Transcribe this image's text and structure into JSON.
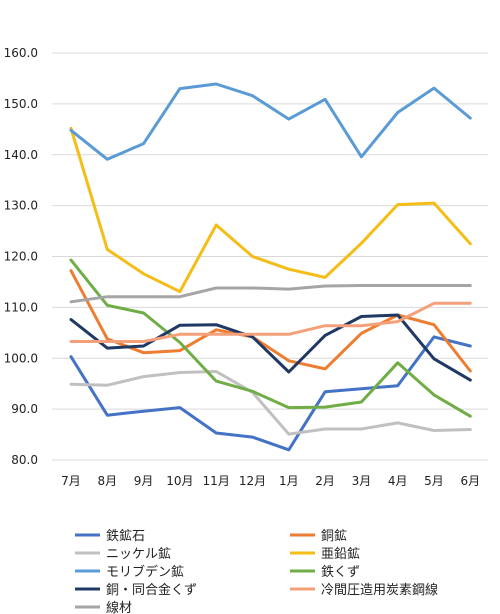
{
  "chart_data": {
    "type": "line",
    "categories": [
      "7月",
      "8月",
      "9月",
      "10月",
      "11月",
      "12月",
      "1月",
      "2月",
      "3月",
      "4月",
      "5月",
      "6月"
    ],
    "ylim": [
      80,
      160
    ],
    "yticks": [
      "80.0",
      "90.0",
      "100.0",
      "110.0",
      "120.0",
      "130.0",
      "140.0",
      "150.0",
      "160.0"
    ],
    "grid": true,
    "legend_position": "bottom",
    "series": [
      {
        "name": "鉄鉱石",
        "color": "#4472c4",
        "values": [
          100.3,
          88.8,
          89.6,
          90.3,
          85.3,
          84.5,
          82.0,
          93.4,
          94.0,
          94.6,
          104.2,
          102.4
        ]
      },
      {
        "name": "銅鉱",
        "color": "#ed7d31",
        "values": [
          117.2,
          103.8,
          101.1,
          101.5,
          105.6,
          104.2,
          99.5,
          97.9,
          104.9,
          108.5,
          106.6,
          97.5
        ]
      },
      {
        "name": "ニッケル鉱",
        "color": "#c0c0c0",
        "values": [
          94.9,
          94.7,
          96.4,
          97.2,
          97.4,
          93.3,
          85.1,
          86.1,
          86.1,
          87.3,
          85.8,
          86.0
        ]
      },
      {
        "name": "亜鉛鉱",
        "color": "#f5bd17",
        "values": [
          145.2,
          121.4,
          116.6,
          113.1,
          126.2,
          120.0,
          117.5,
          115.9,
          122.6,
          130.2,
          130.5,
          122.5
        ]
      },
      {
        "name": "モリブデン鉱",
        "color": "#5b9bd5",
        "values": [
          144.8,
          139.1,
          142.2,
          153.0,
          153.9,
          151.6,
          147.0,
          150.9,
          139.6,
          148.3,
          153.1,
          147.2
        ]
      },
      {
        "name": "鉄くず",
        "color": "#70ad47",
        "values": [
          119.3,
          110.4,
          108.9,
          103.1,
          95.5,
          93.5,
          90.3,
          90.4,
          91.4,
          99.1,
          92.8,
          88.6
        ]
      },
      {
        "name": "銅・同合金くず",
        "color": "#1f3864",
        "values": [
          107.6,
          102.0,
          102.4,
          106.5,
          106.6,
          104.2,
          97.3,
          104.5,
          108.2,
          108.5,
          99.9,
          95.7
        ]
      },
      {
        "name": "冷間圧造用炭素鋼線",
        "color": "#f4a07a",
        "values": [
          103.3,
          103.3,
          103.3,
          104.7,
          104.7,
          104.7,
          104.7,
          106.4,
          106.4,
          107.2,
          110.8,
          110.8
        ]
      },
      {
        "name": "線材",
        "color": "#a5a5a5",
        "values": [
          111.1,
          112.1,
          112.1,
          112.1,
          113.8,
          113.8,
          113.6,
          114.2,
          114.3,
          114.3,
          114.3,
          114.3
        ]
      }
    ]
  }
}
